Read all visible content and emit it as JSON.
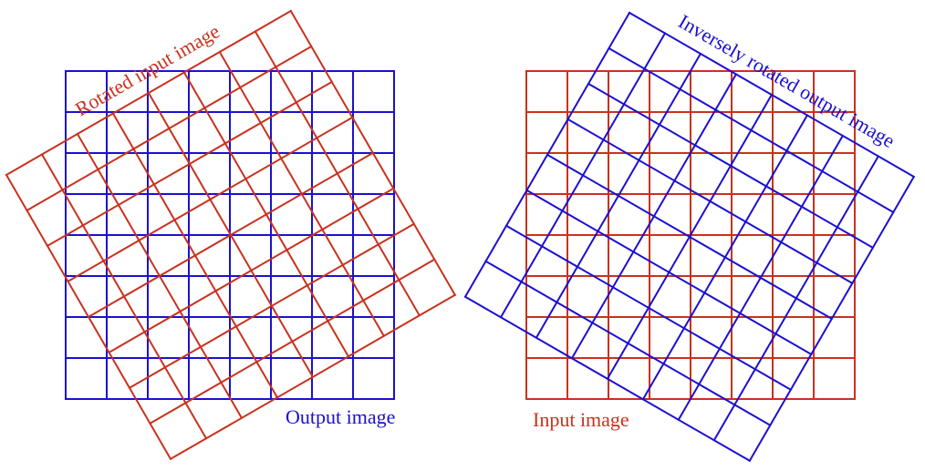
{
  "colors": {
    "blue": "#1c10d0",
    "red": "#c8321e",
    "background": "#ffffff"
  },
  "grid_cells": 8,
  "rotation_deg": 30,
  "left_panel": {
    "axis_grid_label": "Output image",
    "rotated_grid_label": "Rotated input image",
    "axis_grid_color": "blue",
    "rotated_grid_color": "red"
  },
  "right_panel": {
    "axis_grid_label": "Input image",
    "rotated_grid_label": "Inversely rotated output image",
    "axis_grid_color": "red",
    "rotated_grid_color": "blue"
  }
}
